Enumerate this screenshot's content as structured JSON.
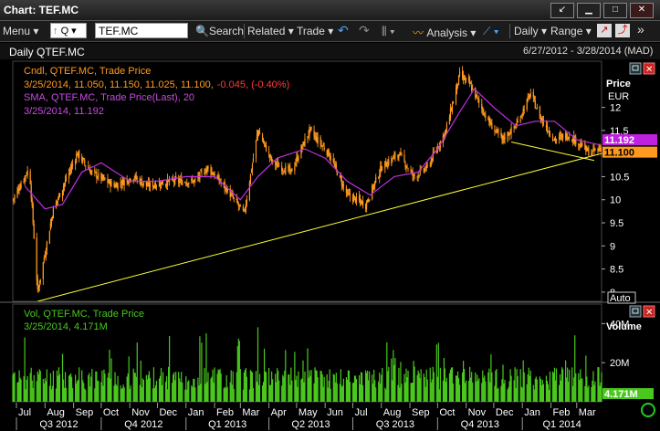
{
  "window": {
    "title": "Chart: TEF.MC",
    "btn_back": "↙",
    "btn_min": "▁",
    "btn_max": "□",
    "btn_close": "✕"
  },
  "toolbar": {
    "menu": "Menu",
    "q_label": "Q",
    "ric": "TEF.MC",
    "search": "Search",
    "related": "Related",
    "trade": "Trade",
    "analysis": "Analysis",
    "daily": "Daily",
    "range": "Range"
  },
  "header": {
    "title": "Daily QTEF.MC",
    "date_range": "6/27/2012 - 3/28/2014 (MAD)"
  },
  "price_panel": {
    "legend_line1": "Cndl, QTEF.MC, Trade Price",
    "legend_line2_prefix": "3/25/2014, 11.050, 11.150, 11.025, 11.100,",
    "legend_line2_change": "-0.045, (-0.40%)",
    "legend_line3": "SMA, QTEF.MC, Trade Price(Last), 20",
    "legend_line4": "3/25/2014, 11.192",
    "axis_title": "Price",
    "axis_unit": "EUR",
    "sma_tag": "11.192",
    "price_tag": "11.100",
    "auto_label": "Auto",
    "colors": {
      "candle": "#ff9a1f",
      "sma": "#c030e0",
      "trendline": "#ffff33",
      "negative": "#ff3b3b"
    }
  },
  "volume_panel": {
    "legend_line1": "Vol, QTEF.MC, Trade Price",
    "legend_line2": "3/25/2014, 4.171M",
    "axis_title": "Volume",
    "vol_tag": "4.171M",
    "colors": {
      "bars": "#4ac81e"
    }
  },
  "chart_data": {
    "type": "line",
    "price_ticks": [
      "12",
      "11.5",
      "11",
      "10.5",
      "10",
      "9.5",
      "9",
      "8.5",
      "8"
    ],
    "price_ylim": [
      7.8,
      13.0
    ],
    "volume_ticks": [
      "40M",
      "20M"
    ],
    "volume_ylim": [
      0,
      50000000
    ],
    "months": [
      "Jul",
      "Aug",
      "Sep",
      "Oct",
      "Nov",
      "Dec",
      "Jan",
      "Feb",
      "Mar",
      "Apr",
      "May",
      "Jun",
      "Jul",
      "Aug",
      "Sep",
      "Oct",
      "Nov",
      "Dec",
      "Jan",
      "Feb",
      "Mar"
    ],
    "quarters": [
      "Q3 2012",
      "Q4 2012",
      "Q1 2013",
      "Q2 2013",
      "Q3 2013",
      "Q4 2013",
      "Q1 2014"
    ],
    "series": [
      {
        "name": "Cndl, QTEF.MC, Trade Price",
        "x": [
          "2012-06-27",
          "2012-07-15",
          "2012-07-24",
          "2012-08-10",
          "2012-09-05",
          "2012-09-20",
          "2012-10-15",
          "2012-11-05",
          "2012-11-20",
          "2012-12-15",
          "2013-01-10",
          "2013-01-25",
          "2013-02-15",
          "2013-03-05",
          "2013-03-20",
          "2013-04-05",
          "2013-04-25",
          "2013-05-15",
          "2013-06-05",
          "2013-06-25",
          "2013-07-15",
          "2013-08-01",
          "2013-08-20",
          "2013-09-05",
          "2013-09-20",
          "2013-10-10",
          "2013-10-25",
          "2013-11-05",
          "2013-11-25",
          "2013-12-10",
          "2013-12-25",
          "2014-01-10",
          "2014-01-20",
          "2014-02-05",
          "2014-02-20",
          "2014-03-05",
          "2014-03-15",
          "2014-03-25"
        ],
        "values": [
          10.0,
          10.7,
          8.0,
          9.8,
          11.0,
          10.6,
          10.3,
          10.5,
          10.3,
          10.4,
          10.4,
          10.7,
          10.2,
          9.7,
          11.5,
          10.8,
          10.6,
          11.5,
          11.0,
          10.1,
          9.9,
          10.7,
          11.0,
          10.5,
          10.7,
          11.5,
          12.7,
          12.5,
          11.7,
          11.3,
          11.6,
          12.3,
          11.8,
          11.3,
          11.4,
          11.2,
          11.0,
          11.1
        ]
      },
      {
        "name": "SMA, QTEF.MC, Trade Price(Last), 20",
        "x": [
          "2012-07-10",
          "2012-08-01",
          "2012-08-20",
          "2012-09-10",
          "2012-10-01",
          "2012-11-01",
          "2012-12-01",
          "2013-01-01",
          "2013-02-01",
          "2013-03-01",
          "2013-03-20",
          "2013-04-10",
          "2013-05-10",
          "2013-06-01",
          "2013-06-25",
          "2013-07-20",
          "2013-08-15",
          "2013-09-10",
          "2013-10-01",
          "2013-10-25",
          "2013-11-10",
          "2013-12-01",
          "2013-12-25",
          "2014-01-15",
          "2014-02-05",
          "2014-03-01",
          "2014-03-25"
        ],
        "values": [
          10.3,
          9.8,
          9.9,
          10.6,
          10.8,
          10.4,
          10.4,
          10.5,
          10.5,
          10.0,
          10.5,
          10.9,
          11.1,
          10.9,
          10.4,
          10.1,
          10.5,
          10.6,
          11.1,
          11.9,
          12.4,
          12.0,
          11.6,
          11.7,
          11.7,
          11.3,
          11.192
        ]
      },
      {
        "name": "Vol, QTEF.MC, Trade Price",
        "x": [
          "2014-03-25"
        ],
        "values": [
          4171000
        ]
      }
    ]
  }
}
